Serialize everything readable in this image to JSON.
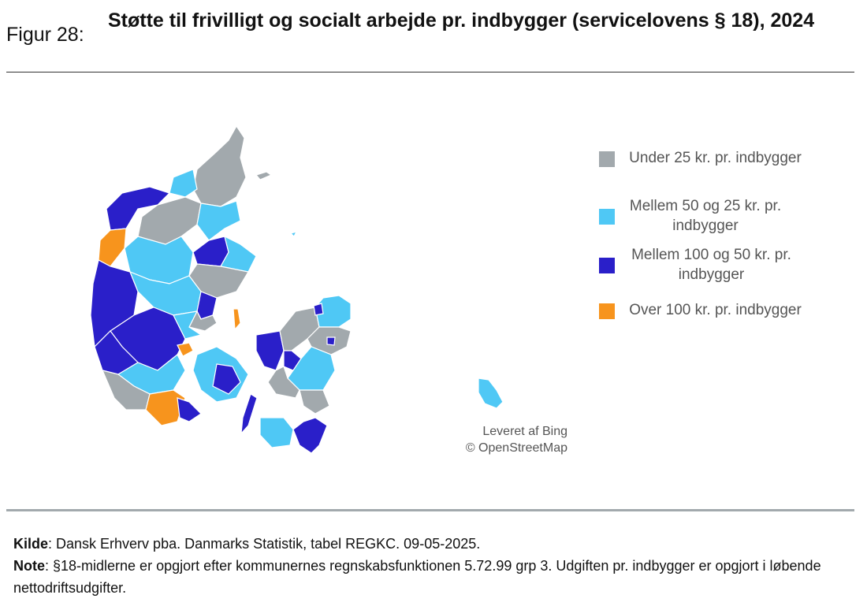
{
  "figure": {
    "label": "Figur 28:",
    "title": "Støtte til frivilligt og socialt arbejde pr. indbygger (servicelovens § 18), 2024"
  },
  "colors": {
    "under25": "#a2a9ad",
    "25to50": "#4fc8f5",
    "50to100": "#2a1fc9",
    "over100": "#f7941d"
  },
  "legend": [
    {
      "label": "Under 25 kr. pr. indbygger",
      "color": "#a2a9ad"
    },
    {
      "label": "Mellem 50 og 25 kr. pr. indbygger",
      "color": "#4fc8f5"
    },
    {
      "label": "Mellem 100 og 50 kr. pr. indbygger",
      "color": "#2a1fc9"
    },
    {
      "label": "Over 100 kr. pr. indbygger",
      "color": "#f7941d"
    }
  ],
  "map_credit": {
    "line1": "Leveret af Bing",
    "line2": "© OpenStreetMap"
  },
  "footer": {
    "source_label": "Kilde",
    "source_text": ": Dansk Erhverv pba. Danmarks Statistik, tabel REGKC. 09-05-2025.",
    "note_label": "Note",
    "note_text": ": §18-midlerne er opgjort efter kommunernes regnskabsfunktionen 5.72.99 grp 3. Udgiften pr. indbygger er opgjort i løbende nettodriftsudgifter."
  }
}
